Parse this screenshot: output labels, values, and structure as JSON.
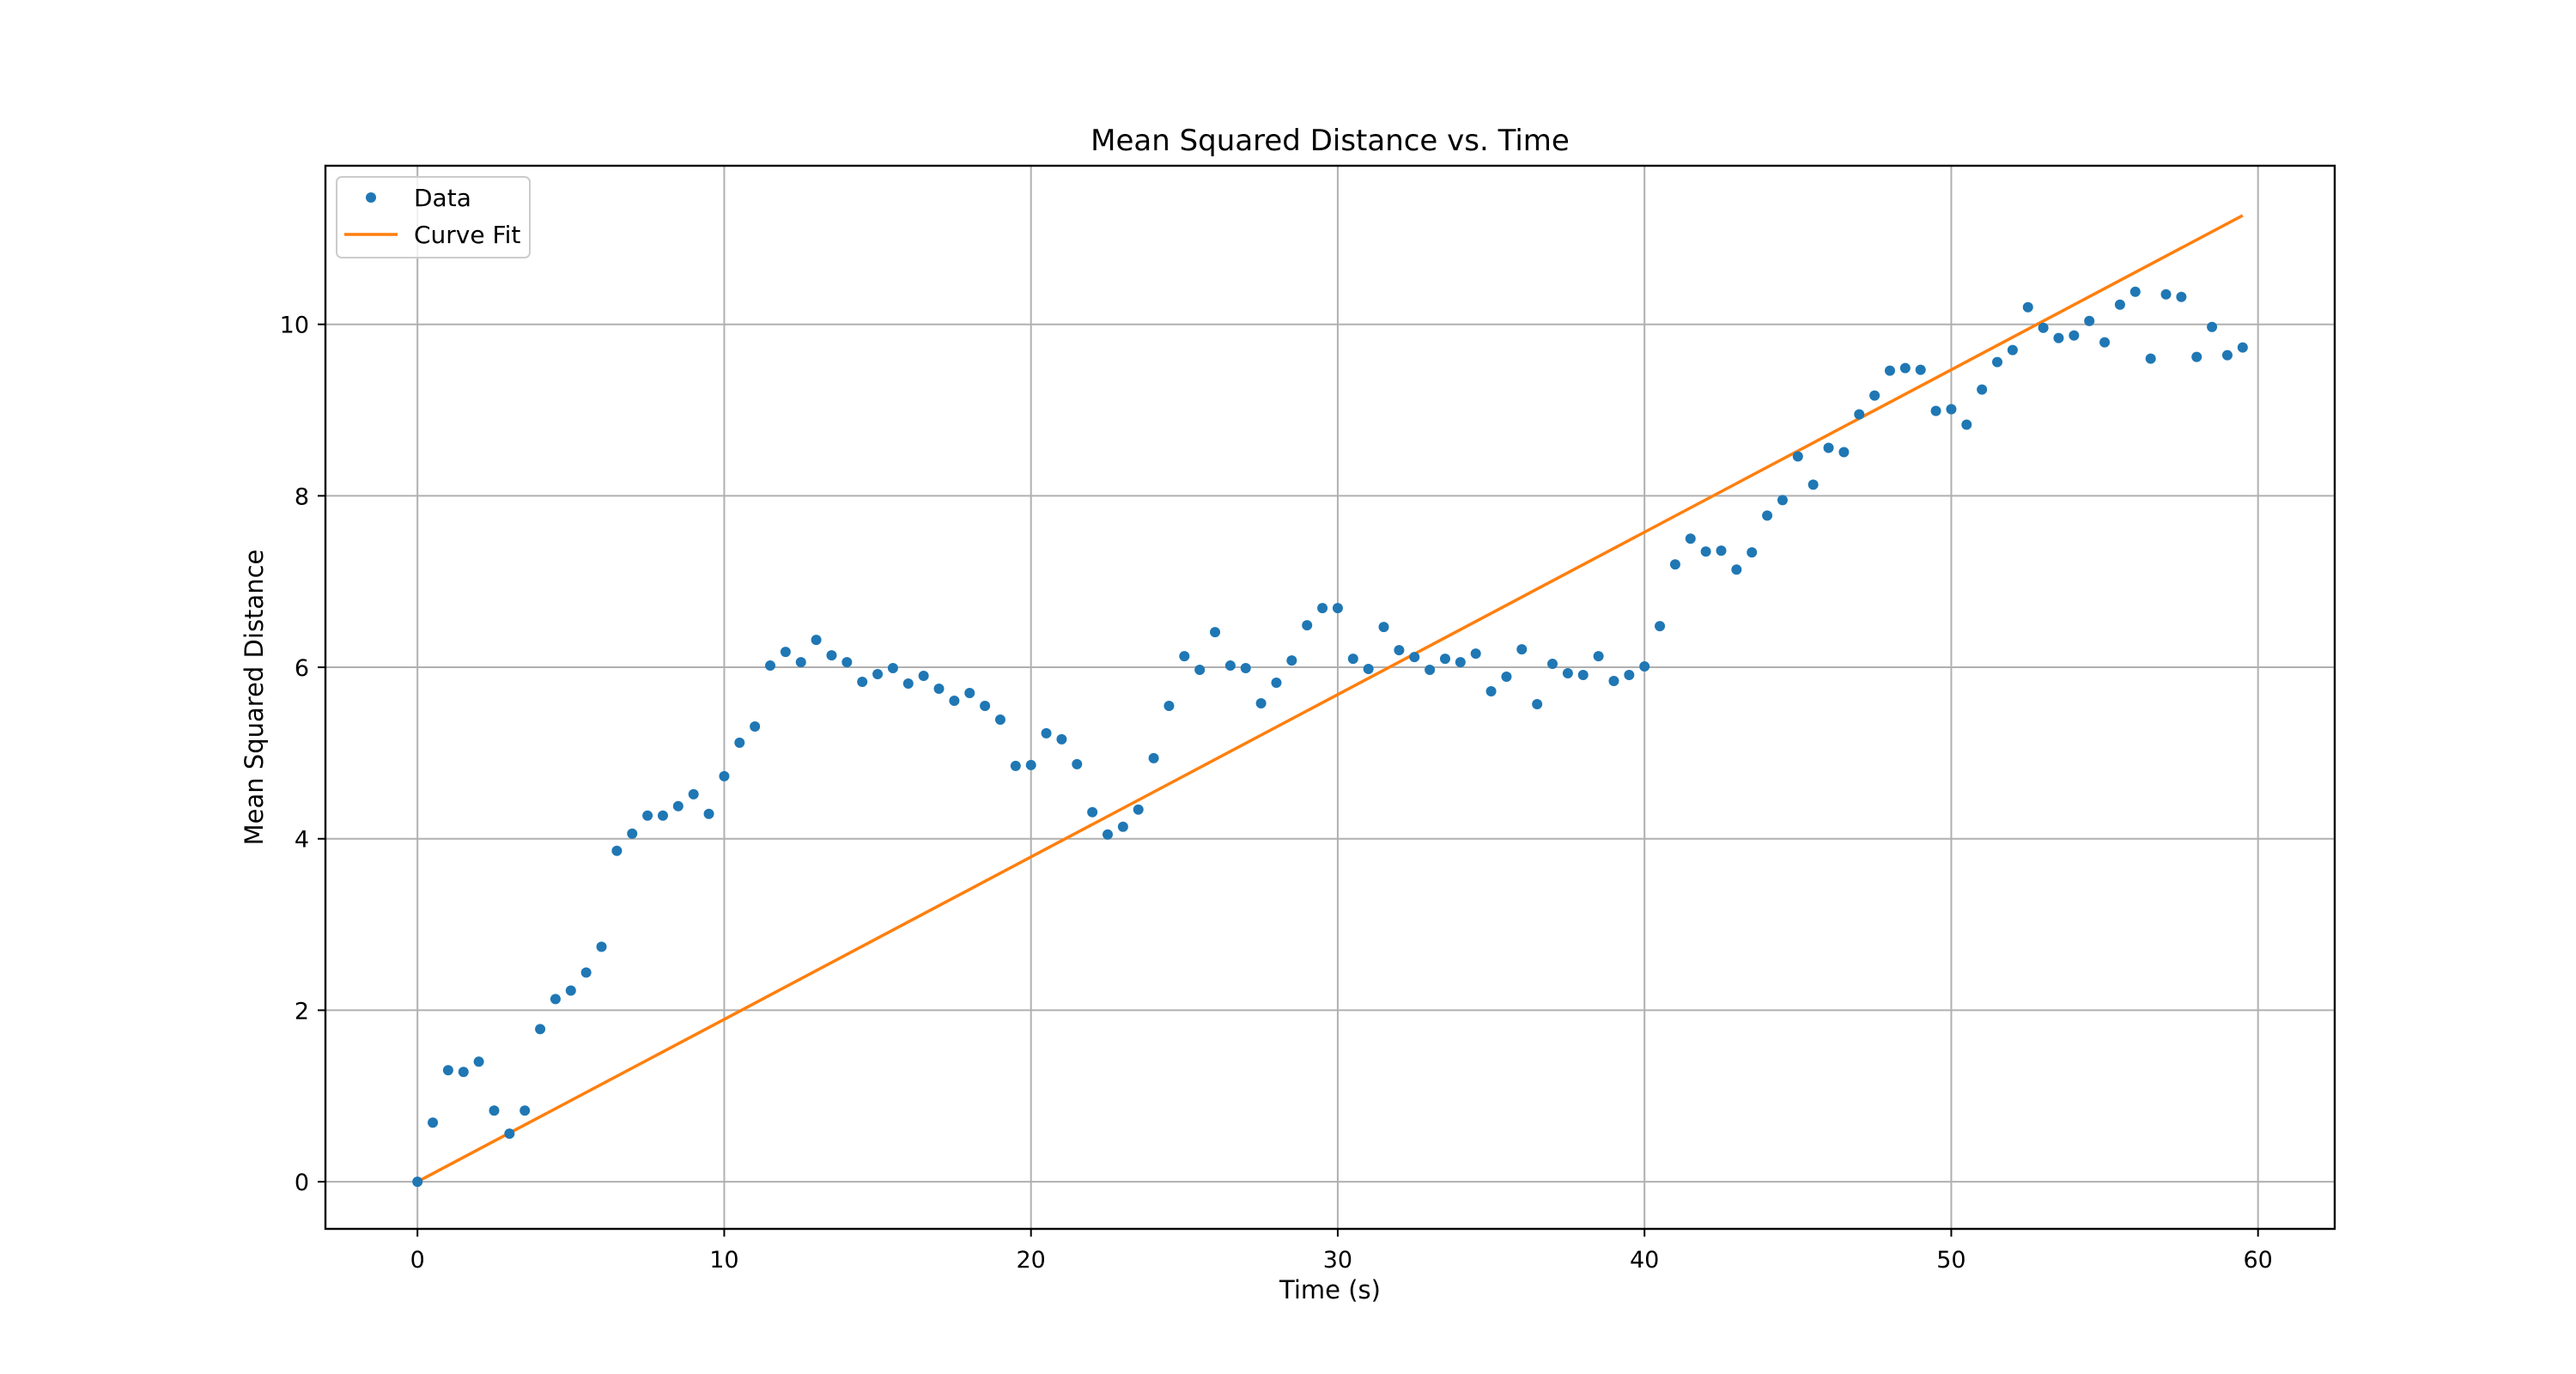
{
  "chart_data": {
    "type": "scatter",
    "title": "Mean Squared Distance vs. Time",
    "xlabel": "Time (s)",
    "ylabel": "Mean Squared Distance",
    "xlim": [
      -3,
      62.5
    ],
    "ylim": [
      -0.55,
      11.85
    ],
    "xticks": [
      0,
      10,
      20,
      30,
      40,
      50,
      60
    ],
    "yticks": [
      0,
      2,
      4,
      6,
      8,
      10
    ],
    "grid": true,
    "legend_position": "top-left",
    "series": [
      {
        "name": "Data",
        "kind": "points",
        "color": "#1f77b4",
        "x": [
          0,
          0.5,
          1,
          1.5,
          2,
          2.5,
          3,
          3.5,
          4,
          4.5,
          5,
          5.5,
          6,
          6.5,
          7,
          7.5,
          8,
          8.5,
          9,
          9.5,
          10,
          10.5,
          11,
          11.5,
          12,
          12.5,
          13,
          13.5,
          14,
          14.5,
          15,
          15.5,
          16,
          16.5,
          17,
          17.5,
          18,
          18.5,
          19,
          19.5,
          20,
          20.5,
          21,
          21.5,
          22,
          22.5,
          23,
          23.5,
          24,
          24.5,
          25,
          25.5,
          26,
          26.5,
          27,
          27.5,
          28,
          28.5,
          29,
          29.5,
          30,
          30.5,
          31,
          31.5,
          32,
          32.5,
          33,
          33.5,
          34,
          34.5,
          35,
          35.5,
          36,
          36.5,
          37,
          37.5,
          38,
          38.5,
          39,
          39.5,
          40,
          40.5,
          41,
          41.5,
          42,
          42.5,
          43,
          43.5,
          44,
          44.5,
          45,
          45.5,
          46,
          46.5,
          47,
          47.5,
          48,
          48.5,
          49,
          49.5,
          50,
          50.5,
          51,
          51.5,
          52,
          52.5,
          53,
          53.5,
          54,
          54.5,
          55,
          55.5,
          56,
          56.5,
          57,
          57.5,
          58,
          58.5,
          59,
          59.5
        ],
        "y": [
          0.0,
          0.69,
          1.3,
          1.28,
          1.4,
          0.83,
          0.56,
          0.83,
          1.78,
          2.13,
          2.23,
          2.44,
          2.74,
          3.86,
          4.06,
          4.27,
          4.27,
          4.38,
          4.52,
          4.29,
          4.73,
          5.12,
          5.31,
          6.02,
          6.18,
          6.06,
          6.32,
          6.14,
          6.06,
          5.83,
          5.92,
          5.99,
          5.81,
          5.9,
          5.75,
          5.61,
          5.7,
          5.55,
          5.39,
          4.85,
          4.86,
          5.23,
          5.16,
          4.87,
          4.31,
          4.05,
          4.14,
          4.34,
          4.94,
          5.55,
          6.13,
          5.97,
          6.41,
          6.02,
          5.99,
          5.58,
          5.82,
          6.08,
          6.49,
          6.69,
          6.69,
          6.1,
          5.98,
          6.47,
          6.2,
          6.12,
          5.97,
          6.1,
          6.06,
          6.16,
          5.72,
          5.89,
          6.21,
          5.57,
          6.04,
          5.93,
          5.91,
          6.13,
          5.84,
          5.91,
          6.01,
          6.48,
          7.2,
          7.5,
          7.35,
          7.36,
          7.14,
          7.34,
          7.77,
          7.95,
          8.46,
          8.13,
          8.56,
          8.51,
          8.95,
          9.17,
          9.46,
          9.49,
          9.47,
          8.99,
          9.01,
          8.83,
          9.24,
          9.56,
          9.7,
          10.2,
          9.96,
          9.84,
          9.87,
          10.04,
          9.79,
          10.23,
          10.38,
          9.6,
          10.35,
          10.32,
          9.62,
          9.97,
          9.64,
          9.73
        ]
      },
      {
        "name": "Curve Fit",
        "kind": "line",
        "color": "#ff7f0e",
        "x": [
          0,
          59.5
        ],
        "y": [
          0.0,
          11.27
        ]
      }
    ]
  }
}
